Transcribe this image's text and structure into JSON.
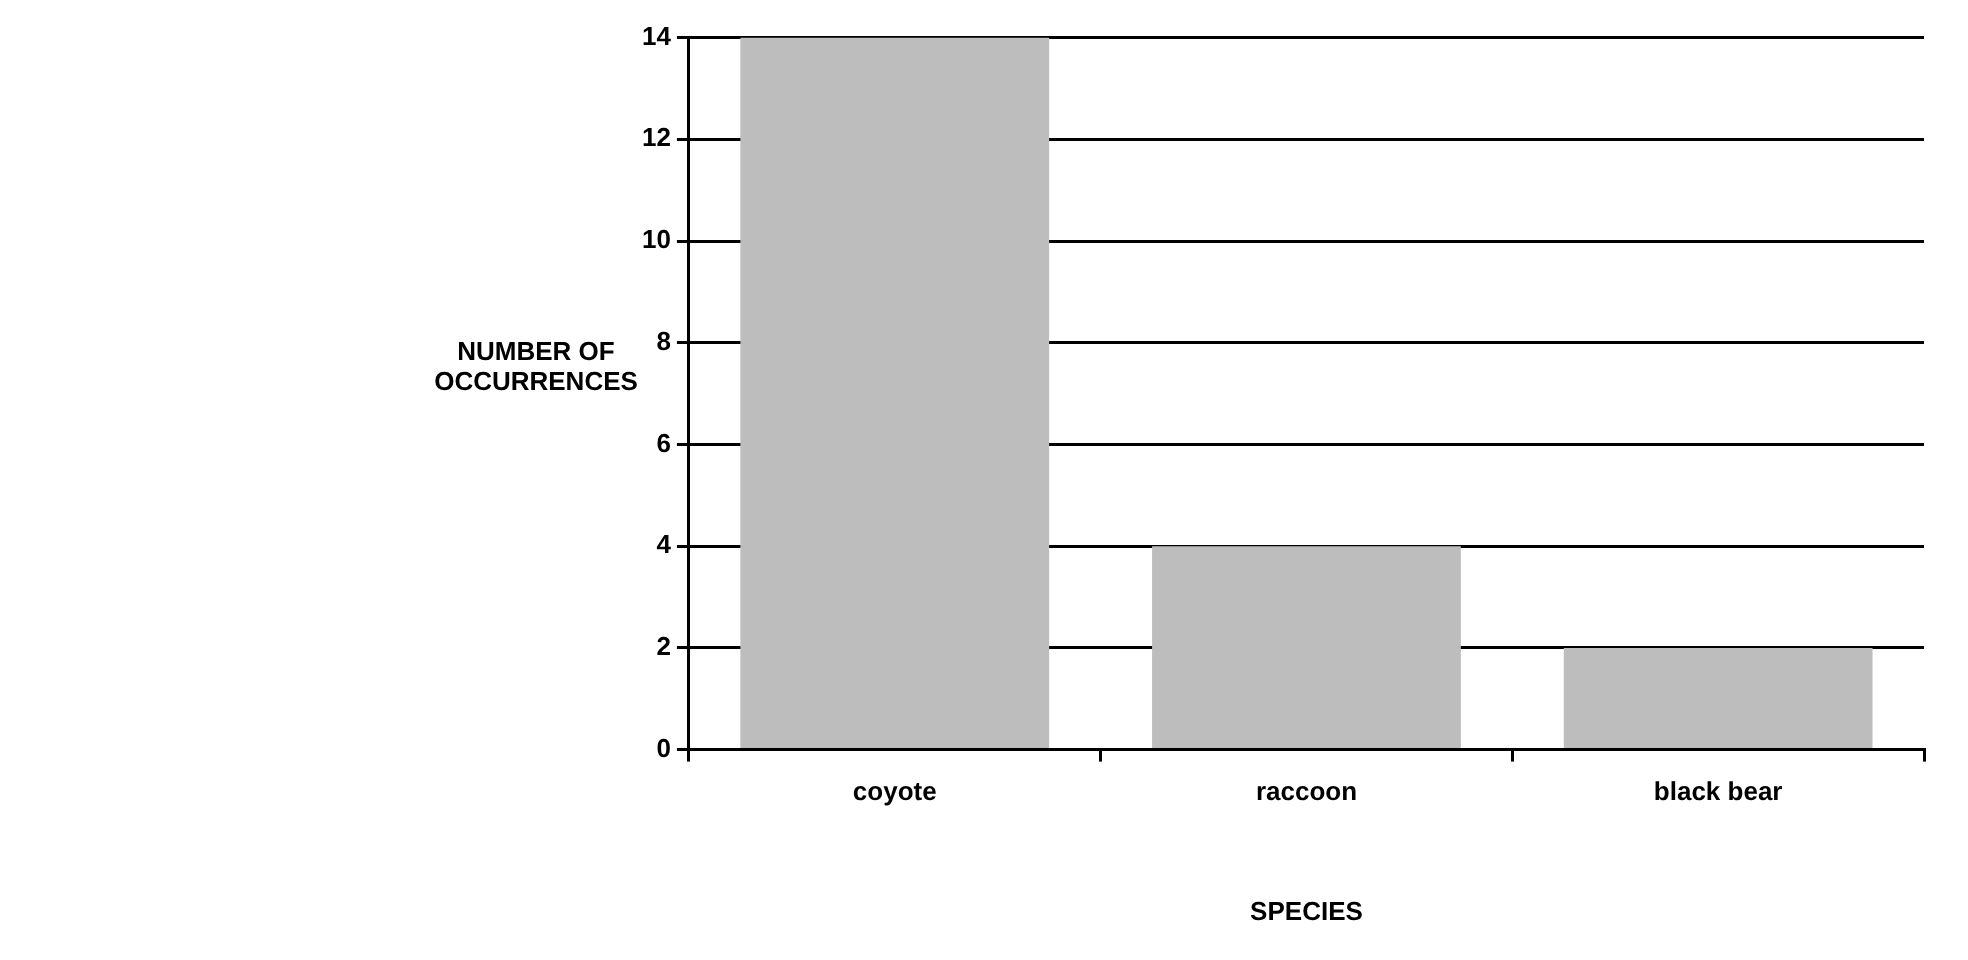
{
  "chart_data": {
    "type": "bar",
    "xlabel": "SPECIES",
    "ylabel": "NUMBER OF OCCURRENCES",
    "categories": [
      "coyote",
      "raccoon",
      "black bear"
    ],
    "values": [
      14,
      4,
      2
    ],
    "color": "#bdbdbd",
    "ylim": [
      0,
      14
    ],
    "yticks": [
      0,
      2,
      4,
      6,
      8,
      10,
      12,
      14
    ],
    "grid": "y"
  }
}
